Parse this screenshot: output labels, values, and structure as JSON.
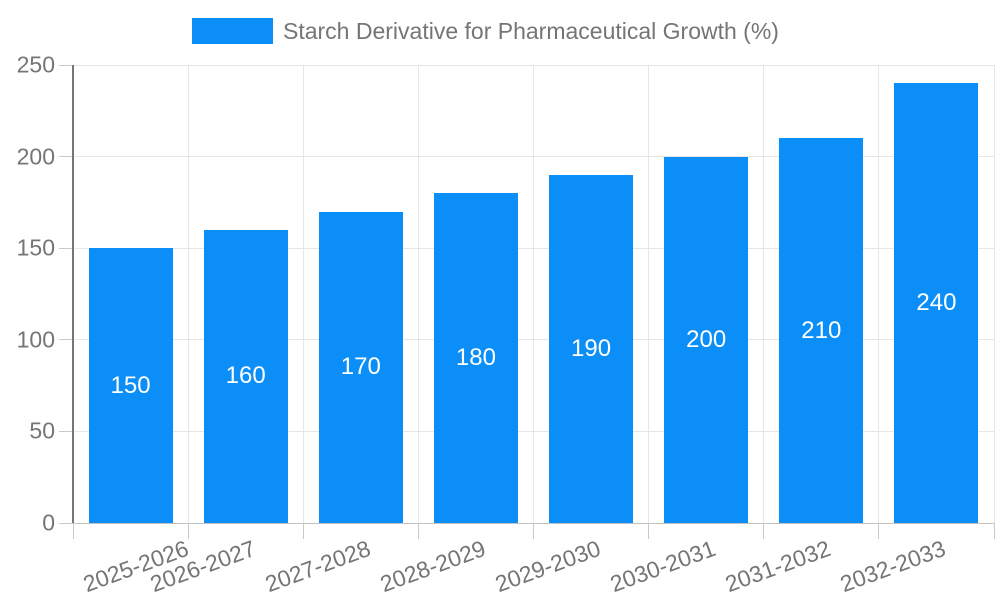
{
  "legend": {
    "label": "Starch Derivative for Pharmaceutical Growth (%)"
  },
  "chart_data": {
    "type": "bar",
    "title": "Starch Derivative for Pharmaceutical Growth (%)",
    "categories": [
      "2025-2026",
      "2026-2027",
      "2027-2028",
      "2028-2029",
      "2029-2030",
      "2030-2031",
      "2031-2032",
      "2032-2033"
    ],
    "values": [
      150,
      160,
      170,
      180,
      190,
      200,
      210,
      240
    ],
    "xlabel": "",
    "ylabel": "",
    "ylim": [
      0,
      250
    ],
    "ytick_step": 50,
    "ytick_labels": [
      "0",
      "50",
      "100",
      "150",
      "200",
      "250"
    ],
    "grid": "horizontal-and-vertical",
    "legend_position": "top",
    "data_labels_position": "inside-center",
    "x_label_rotation_deg": -20
  },
  "colors": {
    "bar": "#0c8ef8",
    "gridline": "#e6e6e6",
    "axis_baseline": "#c2c2c2",
    "y_axis_line": "#757575",
    "axis_text": "#757575",
    "data_label_text": "#ffffff",
    "background": "#ffffff"
  }
}
